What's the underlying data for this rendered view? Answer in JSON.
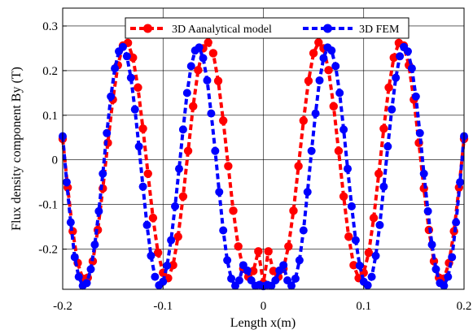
{
  "chart_data": {
    "type": "line",
    "title": "",
    "xlabel": "Length x(m)",
    "ylabel": "Flux density component  By (T)",
    "xlim": [
      -0.2,
      0.2
    ],
    "ylim": [
      -0.29,
      0.34
    ],
    "xticks": [
      -0.2,
      -0.1,
      0,
      0.1,
      0.2
    ],
    "xtick_labels": [
      "-0.2",
      "-0.1",
      "0",
      "0.1",
      "0.2"
    ],
    "yticks": [
      -0.2,
      -0.1,
      0,
      0.1,
      0.2,
      0.3
    ],
    "ytick_labels": [
      "-0.2",
      "-0.1",
      "0",
      "0.1",
      "0.2",
      "0.3"
    ],
    "grid": true,
    "legend_position": "top-center",
    "series": [
      {
        "name": "3D Aanalytical model",
        "color": "#ff0000",
        "style": "dashed-line-with-circle-markers",
        "x": [
          -0.2,
          -0.195,
          -0.19,
          -0.185,
          -0.18,
          -0.175,
          -0.17,
          -0.165,
          -0.16,
          -0.155,
          -0.15,
          -0.145,
          -0.14,
          -0.135,
          -0.13,
          -0.125,
          -0.12,
          -0.115,
          -0.11,
          -0.105,
          -0.1,
          -0.095,
          -0.09,
          -0.085,
          -0.08,
          -0.075,
          -0.07,
          -0.065,
          -0.06,
          -0.055,
          -0.05,
          -0.045,
          -0.04,
          -0.035,
          -0.03,
          -0.025,
          -0.02,
          -0.015,
          -0.01,
          -0.005,
          0,
          0.005,
          0.01,
          0.015,
          0.02,
          0.025,
          0.03,
          0.035,
          0.04,
          0.045,
          0.05,
          0.055,
          0.06,
          0.065,
          0.07,
          0.075,
          0.08,
          0.085,
          0.09,
          0.095,
          0.1,
          0.105,
          0.11,
          0.115,
          0.12,
          0.125,
          0.13,
          0.135,
          0.14,
          0.145,
          0.15,
          0.155,
          0.16,
          0.165,
          0.17,
          0.175,
          0.18,
          0.185,
          0.19,
          0.195,
          0.2
        ],
        "y": [
          0.047,
          -0.062,
          -0.16,
          -0.231,
          -0.266,
          -0.264,
          -0.227,
          -0.157,
          -0.064,
          0.038,
          0.135,
          0.212,
          0.256,
          0.262,
          0.229,
          0.162,
          0.07,
          -0.031,
          -0.13,
          -0.208,
          -0.253,
          -0.265,
          -0.236,
          -0.172,
          -0.082,
          0.02,
          0.12,
          0.201,
          0.25,
          0.263,
          0.239,
          0.177,
          0.088,
          -0.014,
          -0.114,
          -0.194,
          -0.244,
          -0.262,
          -0.249,
          -0.205,
          -0.276,
          -0.205,
          -0.249,
          -0.262,
          -0.244,
          -0.194,
          -0.114,
          -0.014,
          0.088,
          0.177,
          0.239,
          0.263,
          0.25,
          0.201,
          0.12,
          0.02,
          -0.082,
          -0.172,
          -0.236,
          -0.265,
          -0.253,
          -0.208,
          -0.13,
          -0.031,
          0.07,
          0.162,
          0.229,
          0.262,
          0.256,
          0.212,
          0.135,
          0.038,
          -0.064,
          -0.157,
          -0.227,
          -0.264,
          -0.266,
          -0.231,
          -0.16,
          -0.062,
          0.047
        ]
      },
      {
        "name": "3D FEM",
        "color": "#0000ff",
        "style": "dashed-line-with-circle-markers",
        "x": [
          -0.2,
          -0.196,
          -0.192,
          -0.188,
          -0.184,
          -0.18,
          -0.176,
          -0.172,
          -0.168,
          -0.164,
          -0.16,
          -0.156,
          -0.152,
          -0.148,
          -0.144,
          -0.14,
          -0.136,
          -0.132,
          -0.128,
          -0.124,
          -0.12,
          -0.116,
          -0.112,
          -0.108,
          -0.104,
          -0.1,
          -0.096,
          -0.092,
          -0.088,
          -0.084,
          -0.08,
          -0.076,
          -0.072,
          -0.068,
          -0.064,
          -0.06,
          -0.056,
          -0.052,
          -0.048,
          -0.044,
          -0.04,
          -0.036,
          -0.032,
          -0.028,
          -0.024,
          -0.02,
          -0.016,
          -0.012,
          -0.008,
          -0.004,
          0,
          0.004,
          0.008,
          0.012,
          0.016,
          0.02,
          0.024,
          0.028,
          0.032,
          0.036,
          0.04,
          0.044,
          0.048,
          0.052,
          0.056,
          0.06,
          0.064,
          0.068,
          0.072,
          0.076,
          0.08,
          0.084,
          0.088,
          0.092,
          0.096,
          0.1,
          0.104,
          0.108,
          0.112,
          0.116,
          0.12,
          0.124,
          0.128,
          0.132,
          0.136,
          0.14,
          0.144,
          0.148,
          0.152,
          0.156,
          0.16,
          0.164,
          0.168,
          0.172,
          0.176,
          0.18,
          0.184,
          0.188,
          0.192,
          0.196,
          0.2
        ],
        "y": [
          0.053,
          -0.05,
          -0.14,
          -0.218,
          -0.262,
          -0.282,
          -0.276,
          -0.245,
          -0.19,
          -0.115,
          -0.031,
          0.06,
          0.142,
          0.205,
          0.243,
          0.253,
          0.232,
          0.184,
          0.113,
          0.03,
          -0.06,
          -0.146,
          -0.215,
          -0.262,
          -0.281,
          -0.273,
          -0.237,
          -0.18,
          -0.104,
          -0.02,
          0.068,
          0.15,
          0.21,
          0.245,
          0.252,
          0.228,
          0.178,
          0.104,
          0.02,
          -0.072,
          -0.158,
          -0.225,
          -0.266,
          -0.282,
          -0.27,
          -0.236,
          -0.248,
          -0.27,
          -0.282,
          -0.28,
          -0.283,
          -0.28,
          -0.282,
          -0.27,
          -0.248,
          -0.236,
          -0.27,
          -0.282,
          -0.266,
          -0.225,
          -0.158,
          -0.072,
          0.02,
          0.104,
          0.178,
          0.228,
          0.252,
          0.245,
          0.21,
          0.15,
          0.068,
          -0.02,
          -0.104,
          -0.18,
          -0.237,
          -0.273,
          -0.281,
          -0.262,
          -0.215,
          -0.146,
          -0.06,
          0.03,
          0.113,
          0.184,
          0.232,
          0.253,
          0.243,
          0.205,
          0.142,
          0.06,
          -0.031,
          -0.115,
          -0.19,
          -0.245,
          -0.276,
          -0.282,
          -0.262,
          -0.218,
          -0.14,
          -0.05,
          0.053
        ]
      }
    ]
  }
}
